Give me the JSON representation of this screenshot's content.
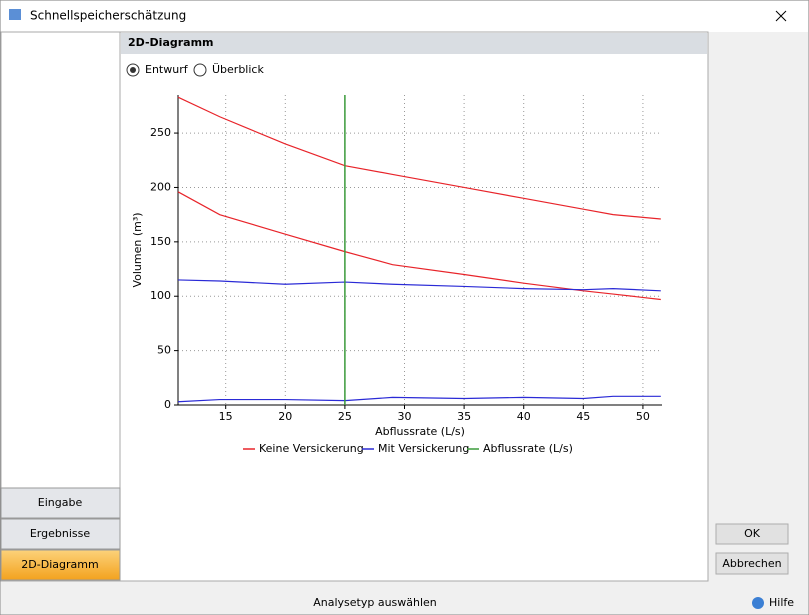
{
  "window": {
    "title": "Schnellspeicherschätzung"
  },
  "nav": {
    "items": [
      "Eingabe",
      "Ergebnisse",
      "2D-Diagramm"
    ],
    "active": 2
  },
  "panel": {
    "title": "2D-Diagramm",
    "options": [
      "Entwurf",
      "Überblick"
    ],
    "selected": 0
  },
  "chart_data": {
    "type": "line",
    "x_label": "Abflussrate (L/s)",
    "y_label": "Volumen (m³)",
    "x": [
      11,
      14.5,
      20,
      25,
      29,
      35,
      40,
      45,
      47.5,
      51.5
    ],
    "series": [
      {
        "name": "Keine Versickerung",
        "color": "#e8242a",
        "values": [
          [
            283,
            265,
            240,
            220,
            212,
            200,
            190,
            180,
            175,
            171
          ],
          [
            196,
            175,
            157,
            141,
            129,
            120,
            112,
            105,
            102,
            97
          ]
        ]
      },
      {
        "name": "Mit Versickerung",
        "color": "#2a2ad6",
        "values": [
          [
            115,
            114,
            111,
            113,
            111,
            109,
            107,
            106,
            107,
            105
          ],
          [
            3,
            5,
            5,
            4,
            7,
            6,
            7,
            6,
            8,
            8
          ]
        ]
      },
      {
        "name": "Abflussrate (L/s)",
        "color": "#3a9a3a",
        "x": 25
      }
    ],
    "xlim": [
      11,
      51.6
    ],
    "ylim": [
      0,
      285
    ],
    "xticks": [
      15,
      20,
      25,
      30,
      35,
      40,
      45,
      50
    ],
    "yticks": [
      0,
      50,
      100,
      150,
      200,
      250
    ],
    "grid": true
  },
  "buttons": {
    "ok": "OK",
    "cancel": "Abbrechen"
  },
  "status": {
    "text": "Analysetyp auswählen",
    "help": "Hilfe"
  }
}
